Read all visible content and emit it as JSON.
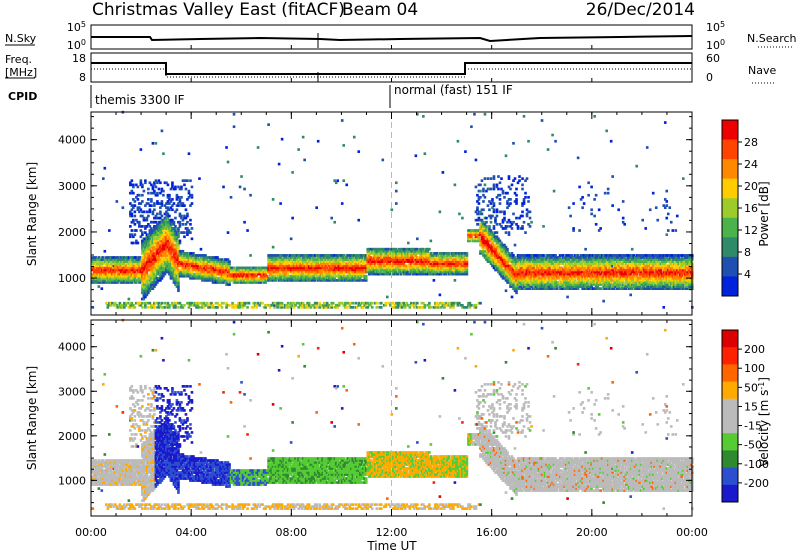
{
  "header": {
    "title": "Christmas Valley East (fitACF)",
    "beam": "Beam 04",
    "date": "26/Dec/2014"
  },
  "colors": {
    "background": "#ffffff",
    "axis": "#000000",
    "power_scale": [
      "#0022dd",
      "#1f4fb0",
      "#2f8a6a",
      "#4cb24c",
      "#9ccc2a",
      "#ffcc00",
      "#ff8800",
      "#ff4400",
      "#ee0000"
    ],
    "velocity_scale": [
      "#1a1acc",
      "#2c4fd0",
      "#2f8a2f",
      "#55cc33",
      "#bbbbbb",
      "#bbbbbb",
      "#ffaa00",
      "#ff6600",
      "#ff2200",
      "#dd0000"
    ]
  },
  "strip_panels": {
    "sky": {
      "left_label": "N.Sky",
      "left_ticks": [
        "10^5",
        "10^0"
      ],
      "right_label": "N.Search",
      "right_ticks": [
        "10^5",
        "10^0"
      ]
    },
    "freq": {
      "left_label_1": "Freq.",
      "left_label_2": "[MHz]",
      "left_ticks": [
        "18",
        "8"
      ],
      "right_label": "Nave",
      "right_ticks": [
        "60",
        "0"
      ]
    },
    "cpid": {
      "label": "CPID",
      "segment_1": "themis 3300 IF",
      "segment_2": "normal (fast) 151 IF"
    }
  },
  "chart_data": [
    {
      "type": "heatmap",
      "name": "Power",
      "ylabel": "Slant Range [km]",
      "xlabel": "Time UT",
      "x_range_hours": [
        0,
        24
      ],
      "ylim_km": [
        200,
        4600
      ],
      "y_ticks": [
        "1000",
        "2000",
        "3000",
        "4000"
      ],
      "x_ticks": [
        "00:00",
        "04:00",
        "08:00",
        "12:00",
        "16:00",
        "20:00",
        "00:00"
      ],
      "colorbar_label": "Power [dB]",
      "colorbar_ticks": [
        "28",
        "24",
        "20",
        "16",
        "12",
        "8",
        "4"
      ],
      "colorbar_min": 0,
      "colorbar_max": 32
    },
    {
      "type": "heatmap",
      "name": "Velocity",
      "ylabel": "Slant Range [km]",
      "xlabel": "Time UT",
      "x_range_hours": [
        0,
        24
      ],
      "ylim_km": [
        200,
        4600
      ],
      "y_ticks": [
        "1000",
        "2000",
        "3000",
        "4000"
      ],
      "x_ticks": [
        "00:00",
        "04:00",
        "08:00",
        "12:00",
        "16:00",
        "20:00",
        "00:00"
      ],
      "colorbar_label": "Velocity [m s^-1]",
      "colorbar_ticks": [
        "200",
        "100",
        "50",
        "15",
        "-15",
        "-50",
        "-100",
        "-200"
      ]
    }
  ]
}
